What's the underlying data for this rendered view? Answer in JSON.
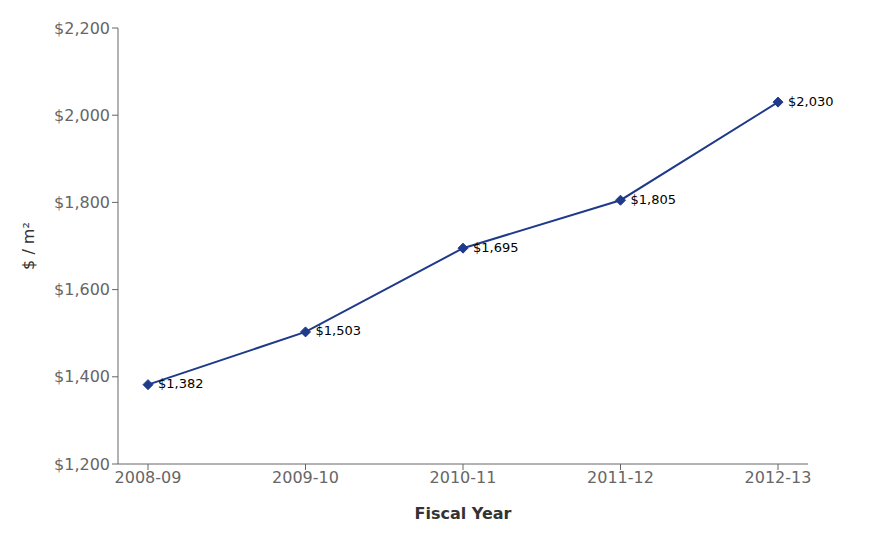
{
  "chart_data": {
    "type": "line",
    "categories": [
      "2008-09",
      "2009-10",
      "2010-11",
      "2011-12",
      "2012-13"
    ],
    "values": [
      1382,
      1503,
      1695,
      1805,
      2030
    ],
    "value_labels": [
      "$1,382",
      "$1,503",
      "$1,695",
      "$1,805",
      "$2,030"
    ],
    "data_labels": true,
    "color": "#1F3A8A",
    "marker": "diamond",
    "xlabel": "Fiscal Year",
    "ylabel": "$ / m²",
    "ylim": [
      1200,
      2200
    ],
    "yticks": [
      {
        "value": 1200,
        "label": "$1,200"
      },
      {
        "value": 1400,
        "label": "$1,400"
      },
      {
        "value": 1600,
        "label": "$1,600"
      },
      {
        "value": 1800,
        "label": "$1,800"
      },
      {
        "value": 2000,
        "label": "$2,000"
      },
      {
        "value": 2200,
        "label": "$2,200"
      }
    ],
    "grid": false
  }
}
